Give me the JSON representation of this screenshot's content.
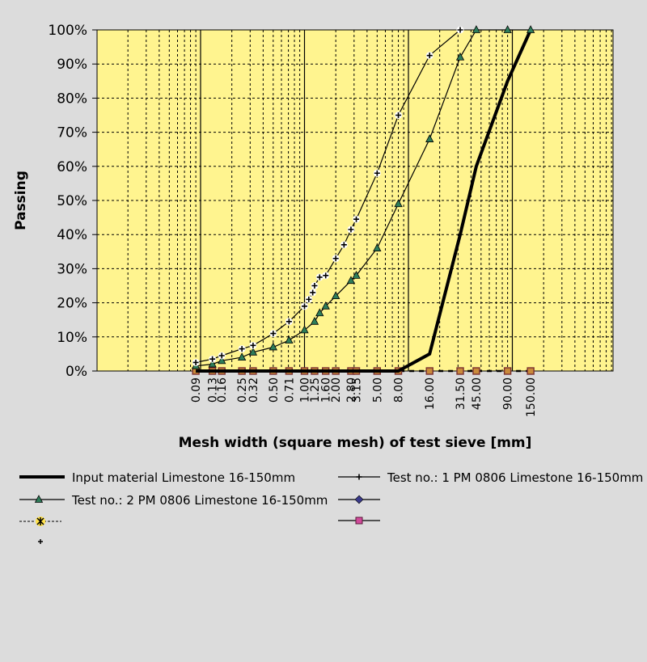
{
  "chart_data": {
    "type": "line",
    "ylabel": "Passing",
    "xlabel": "Mesh width (square mesh) of test sieve [mm]",
    "x_scale": "log",
    "x_ticks": [
      "0.09",
      "0.13",
      "0.16",
      "0.25",
      "0.32",
      "0.50",
      "0.71",
      "1.00",
      "1.25",
      "1.60",
      "2.00",
      "2.80",
      "3.15",
      "5.00",
      "8.00",
      "16.00",
      "31.50",
      "45.00",
      "90.00",
      "150.00"
    ],
    "y_ticks": [
      "0%",
      "10%",
      "20%",
      "30%",
      "40%",
      "50%",
      "60%",
      "70%",
      "80%",
      "90%",
      "100%"
    ],
    "ylim": [
      0,
      100
    ],
    "grid": true,
    "plot_background": "#fff48f",
    "legend_position": "bottom",
    "series": [
      {
        "name": "Input material Limestone 16-150mm",
        "color": "#000000",
        "marker": "none",
        "style": "thick",
        "x": [
          0.09,
          0.13,
          0.16,
          0.25,
          0.32,
          0.5,
          0.71,
          1.0,
          1.25,
          1.6,
          2.0,
          2.8,
          3.15,
          5.0,
          8.0,
          16.0,
          31.5,
          45.0,
          90.0,
          150.0
        ],
        "y": [
          0,
          0,
          0,
          0,
          0,
          0,
          0,
          0,
          0,
          0,
          0,
          0,
          0,
          0,
          0,
          5,
          40,
          60,
          85,
          100
        ]
      },
      {
        "name": "Test no.: 1 PM 0806 Limestone 16-150mm",
        "color": "#000000",
        "marker": "plus",
        "style": "thin",
        "x": [
          0.09,
          0.13,
          0.16,
          0.25,
          0.32,
          0.5,
          0.71,
          1.0,
          1.1,
          1.2,
          1.25,
          1.4,
          1.6,
          2.0,
          2.4,
          2.8,
          3.15,
          5.0,
          8.0,
          16.0,
          31.5
        ],
        "y": [
          2.5,
          3.5,
          4.5,
          6.5,
          7.5,
          11,
          14.5,
          19,
          21,
          23,
          25,
          27.5,
          28,
          33,
          37,
          41.5,
          44.5,
          58,
          75,
          92.5,
          100
        ]
      },
      {
        "name": "Test no.: 2 PM 0806 Limestone 16-150mm",
        "color": "#2e7d5a",
        "marker": "triangle",
        "style": "thin",
        "x": [
          0.09,
          0.13,
          0.16,
          0.25,
          0.32,
          0.5,
          0.71,
          1.0,
          1.25,
          1.4,
          1.6,
          2.0,
          2.8,
          3.15,
          5.0,
          8.0,
          16.0,
          31.5,
          45.0,
          90.0,
          150.0
        ],
        "y": [
          1.5,
          2,
          3,
          4,
          5.5,
          7,
          9,
          12,
          14.5,
          17,
          19,
          22,
          26.5,
          28,
          36,
          49,
          68,
          92,
          100,
          100,
          100
        ]
      },
      {
        "name": "",
        "color": "#7a5a2a",
        "marker": "square",
        "style": "dashed",
        "x": [
          0.09,
          0.13,
          0.16,
          0.25,
          0.32,
          0.5,
          0.71,
          1.0,
          1.25,
          1.6,
          2.0,
          2.8,
          3.15,
          5.0,
          8.0,
          16.0,
          31.5,
          45.0,
          90.0,
          150.0
        ],
        "y": [
          0,
          0,
          0,
          0,
          0,
          0,
          0,
          0,
          0,
          0,
          0,
          0,
          0,
          0,
          0,
          0,
          0,
          0,
          0,
          0
        ]
      }
    ],
    "legend": [
      {
        "label": "Input material Limestone 16-150mm",
        "symbol": "thick-line"
      },
      {
        "label": "Test no.: 1 PM 0806 Limestone 16-150mm",
        "symbol": "line-plus"
      },
      {
        "label": "Test no.: 2 PM 0806 Limestone 16-150mm",
        "symbol": "line-triangle"
      },
      {
        "label": "",
        "symbol": "line-diamond"
      },
      {
        "label": "",
        "symbol": "dashed-asterisk"
      },
      {
        "label": "",
        "symbol": "line-square"
      },
      {
        "label": "",
        "symbol": "plus"
      }
    ]
  }
}
